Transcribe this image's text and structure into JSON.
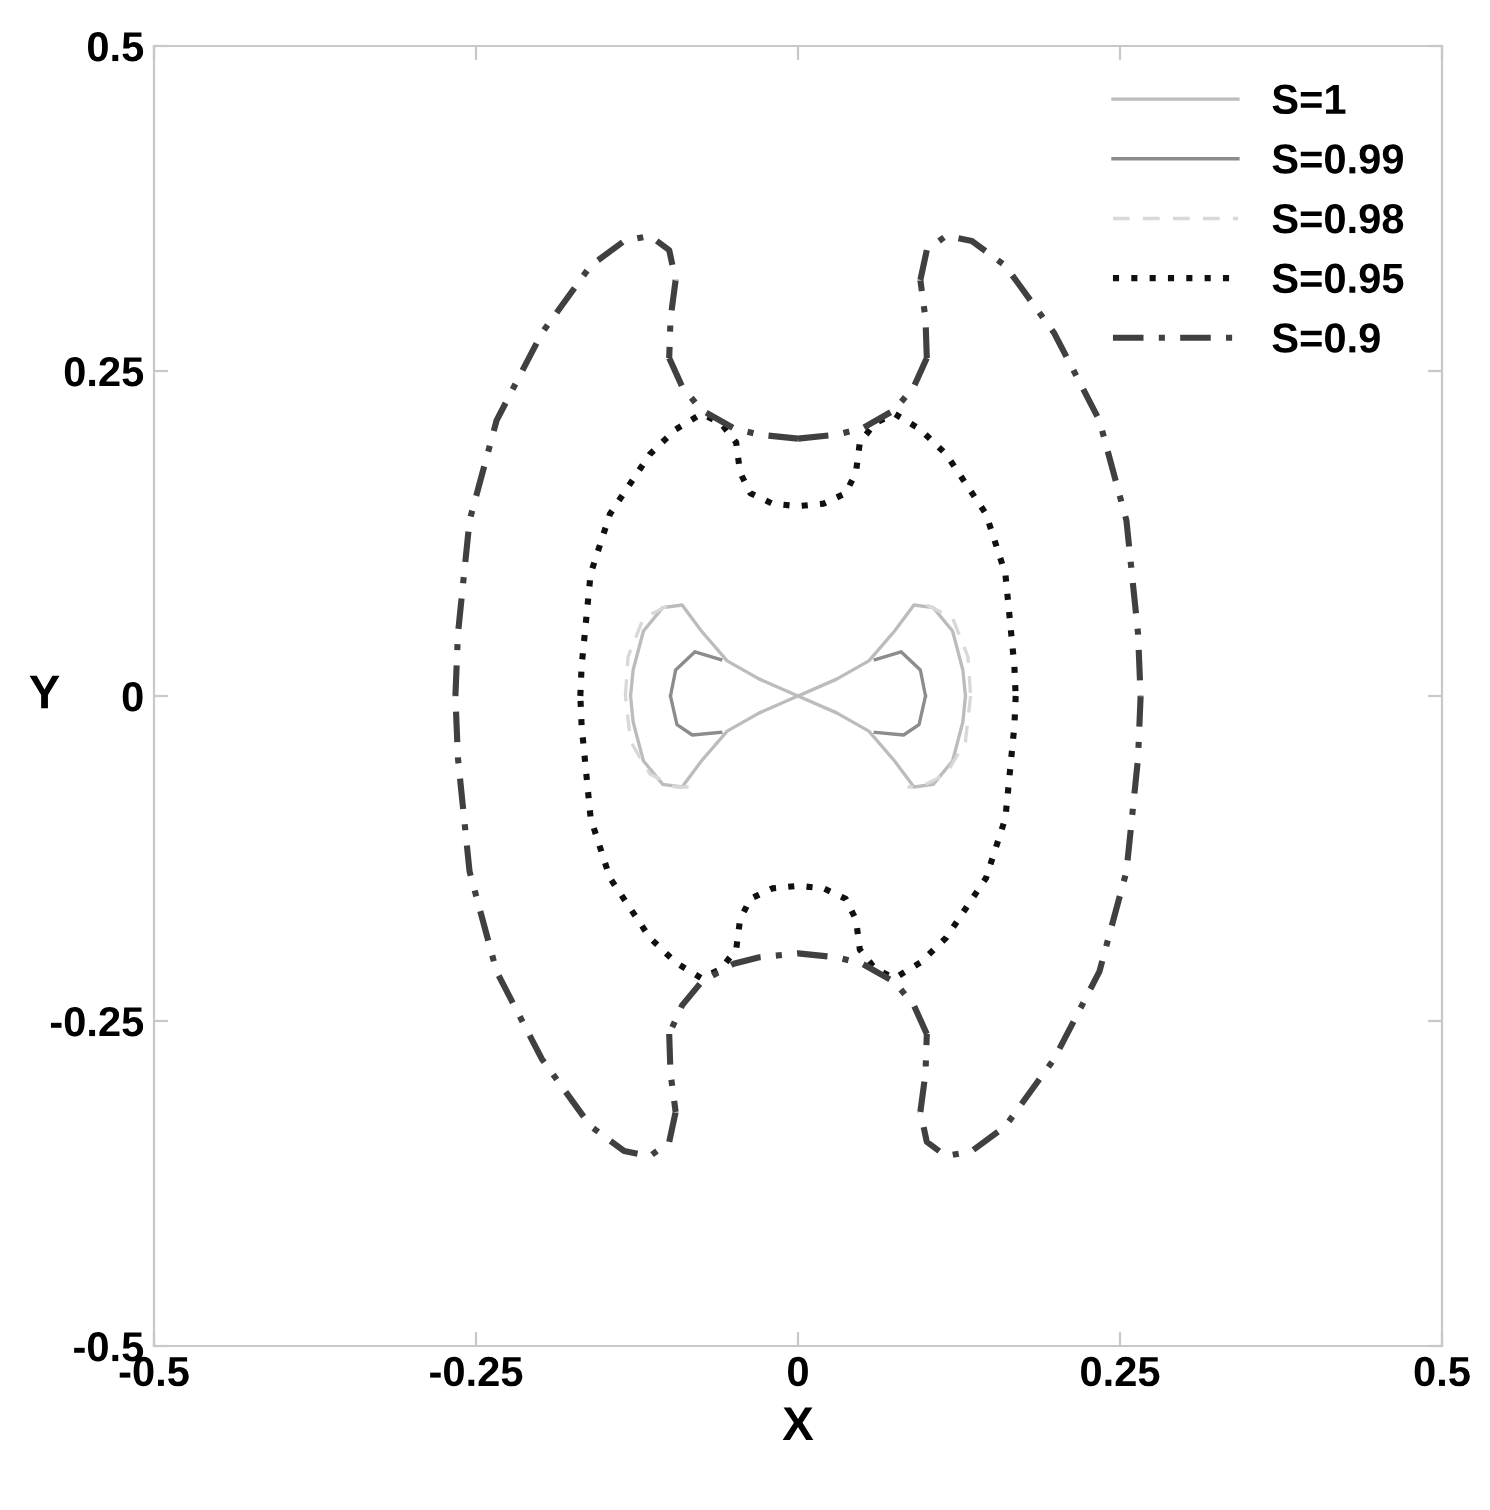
{
  "chart_data": {
    "type": "line",
    "xlabel": "X",
    "ylabel": "Y",
    "xlim": [
      -0.5,
      0.5
    ],
    "ylim": [
      -0.5,
      0.5
    ],
    "xticks": [
      -0.5,
      -0.25,
      0,
      0.25,
      0.5
    ],
    "yticks": [
      -0.5,
      -0.25,
      0,
      0.25,
      0.5
    ],
    "grid": false,
    "legend": "top right",
    "marker": "none",
    "series": [
      {
        "name": "S=1",
        "color": "#bcbcbc",
        "line_style": "solid",
        "x": [
          0,
          0.03,
          0.055,
          0.075,
          0.09,
          0.105,
          0.12,
          0.128,
          0.13,
          null,
          0.13,
          0.128,
          0.12,
          0.105,
          0.09,
          0.075,
          0.055,
          0.03,
          0,
          -0.03,
          -0.055,
          -0.075,
          -0.09,
          -0.105,
          -0.12,
          -0.128,
          -0.13,
          null,
          -0.13,
          -0.128,
          -0.12,
          -0.105,
          -0.09,
          -0.075,
          -0.055,
          -0.03,
          0
        ],
        "values": [
          0,
          0.013,
          0.027,
          0.05,
          0.07,
          0.068,
          0.05,
          0.02,
          0,
          null,
          0,
          -0.02,
          -0.05,
          -0.068,
          -0.07,
          -0.05,
          -0.027,
          -0.013,
          0,
          0.013,
          0.027,
          0.05,
          0.07,
          0.068,
          0.05,
          0.02,
          0,
          null,
          0,
          -0.02,
          -0.05,
          -0.068,
          -0.07,
          -0.05,
          -0.027,
          -0.013,
          0
        ]
      },
      {
        "name": "S=0.99",
        "color": "#8c8c8c",
        "line_style": "solid",
        "x": [
          0.06,
          0.08,
          0.095,
          0.099,
          null,
          0.099,
          0.094,
          0.082,
          0.06,
          null,
          -0.099,
          -0.095,
          -0.08,
          -0.06,
          null,
          -0.06,
          -0.082,
          -0.094,
          -0.099
        ],
        "values": [
          0.028,
          0.034,
          0.02,
          0,
          null,
          0,
          -0.022,
          -0.03,
          -0.028,
          null,
          0,
          0.02,
          0.034,
          0.028,
          null,
          -0.028,
          -0.03,
          -0.022,
          0
        ]
      },
      {
        "name": "S=0.98",
        "color": "#d8d8d8",
        "line_style": "dashed",
        "x": [
          0.1,
          0.12,
          0.132,
          0.134,
          null,
          0.134,
          0.13,
          0.115,
          0.095,
          0.085,
          null,
          -0.134,
          -0.132,
          -0.12,
          -0.1,
          null,
          -0.085,
          -0.095,
          -0.115,
          -0.13,
          -0.134
        ],
        "values": [
          0.07,
          0.06,
          0.03,
          0,
          null,
          0,
          -0.035,
          -0.06,
          -0.07,
          -0.07,
          null,
          0,
          0.03,
          0.06,
          0.07,
          null,
          -0.07,
          -0.07,
          -0.06,
          -0.035,
          0
        ]
      },
      {
        "name": "S=0.95",
        "color": "#101010",
        "line_style": "dotted",
        "x": [
          -0.169,
          -0.168,
          -0.161,
          -0.146,
          -0.115,
          -0.095,
          -0.075,
          -0.06,
          -0.048,
          -0.045,
          -0.037,
          -0.02,
          0,
          0.02,
          0.037,
          0.045,
          0.048,
          0.06,
          0.075,
          0.095,
          0.115,
          0.146,
          0.161,
          0.168,
          0.169,
          null,
          0.169,
          0.168,
          0.161,
          0.146,
          0.115,
          0.095,
          0.075,
          0.06,
          0.048,
          0.045,
          0.037,
          0.02,
          0,
          -0.02,
          -0.037,
          -0.045,
          -0.048,
          -0.06,
          -0.075,
          -0.095,
          -0.115,
          -0.146,
          -0.161,
          -0.168,
          -0.169
        ],
        "values": [
          0,
          0.023,
          0.094,
          0.14,
          0.186,
          0.205,
          0.217,
          0.21,
          0.195,
          0.172,
          0.156,
          0.148,
          0.146,
          0.148,
          0.156,
          0.172,
          0.195,
          0.21,
          0.217,
          0.205,
          0.186,
          0.14,
          0.094,
          0.023,
          0,
          null,
          0,
          -0.023,
          -0.094,
          -0.14,
          -0.186,
          -0.205,
          -0.217,
          -0.21,
          -0.195,
          -0.172,
          -0.156,
          -0.148,
          -0.146,
          -0.148,
          -0.156,
          -0.172,
          -0.195,
          -0.21,
          -0.217,
          -0.205,
          -0.186,
          -0.14,
          -0.094,
          -0.023,
          0
        ]
      },
      {
        "name": "S=0.9",
        "color": "#404040",
        "line_style": "dashdot",
        "x": [
          0,
          0.03,
          0.05,
          0.075,
          0.09,
          0.1,
          null,
          0.1,
          0.099,
          0.095,
          null,
          0.095,
          0.1,
          0.115,
          0.135,
          0.161,
          0.199,
          0.234,
          0.255,
          0.264,
          0.266,
          null,
          0.266,
          0.264,
          0.255,
          0.234,
          0.199,
          0.161,
          0.135,
          0.115,
          0.1,
          0.095,
          null,
          0.095,
          0.099,
          0.1,
          null,
          0.1,
          0.09,
          0.075,
          0.05,
          0.03,
          0,
          -0.03,
          -0.05,
          -0.075,
          -0.09,
          -0.1,
          null,
          -0.1,
          -0.099,
          -0.095,
          null,
          -0.095,
          -0.1,
          -0.115,
          -0.135,
          -0.161,
          -0.199,
          -0.234,
          -0.255,
          -0.264,
          -0.266,
          null,
          -0.266,
          -0.264,
          -0.255,
          -0.234,
          -0.199,
          -0.161,
          -0.135,
          -0.115,
          -0.1,
          -0.095,
          null,
          -0.095,
          -0.099,
          -0.1,
          null,
          -0.1,
          -0.09,
          -0.075,
          -0.05,
          -0.03,
          0
        ],
        "values": [
          0.198,
          0.201,
          0.206,
          0.22,
          0.238,
          0.26,
          null,
          0.26,
          0.29,
          0.32,
          null,
          0.32,
          0.343,
          0.354,
          0.35,
          0.331,
          0.279,
          0.212,
          0.135,
          0.048,
          0,
          null,
          0,
          -0.048,
          -0.135,
          -0.212,
          -0.279,
          -0.331,
          -0.35,
          -0.354,
          -0.343,
          -0.32,
          null,
          -0.32,
          -0.29,
          -0.26,
          null,
          -0.26,
          -0.238,
          -0.22,
          -0.206,
          -0.201,
          -0.198,
          -0.201,
          -0.206,
          -0.22,
          -0.238,
          -0.26,
          null,
          -0.26,
          -0.29,
          -0.32,
          null,
          -0.32,
          -0.343,
          -0.354,
          -0.35,
          -0.331,
          -0.279,
          -0.212,
          -0.135,
          -0.048,
          0,
          null,
          0,
          0.048,
          0.135,
          0.212,
          0.279,
          0.331,
          0.35,
          0.354,
          0.343,
          0.32,
          null,
          0.32,
          0.29,
          0.26,
          null,
          0.26,
          0.238,
          0.22,
          0.206,
          0.201,
          0.198
        ]
      }
    ]
  }
}
